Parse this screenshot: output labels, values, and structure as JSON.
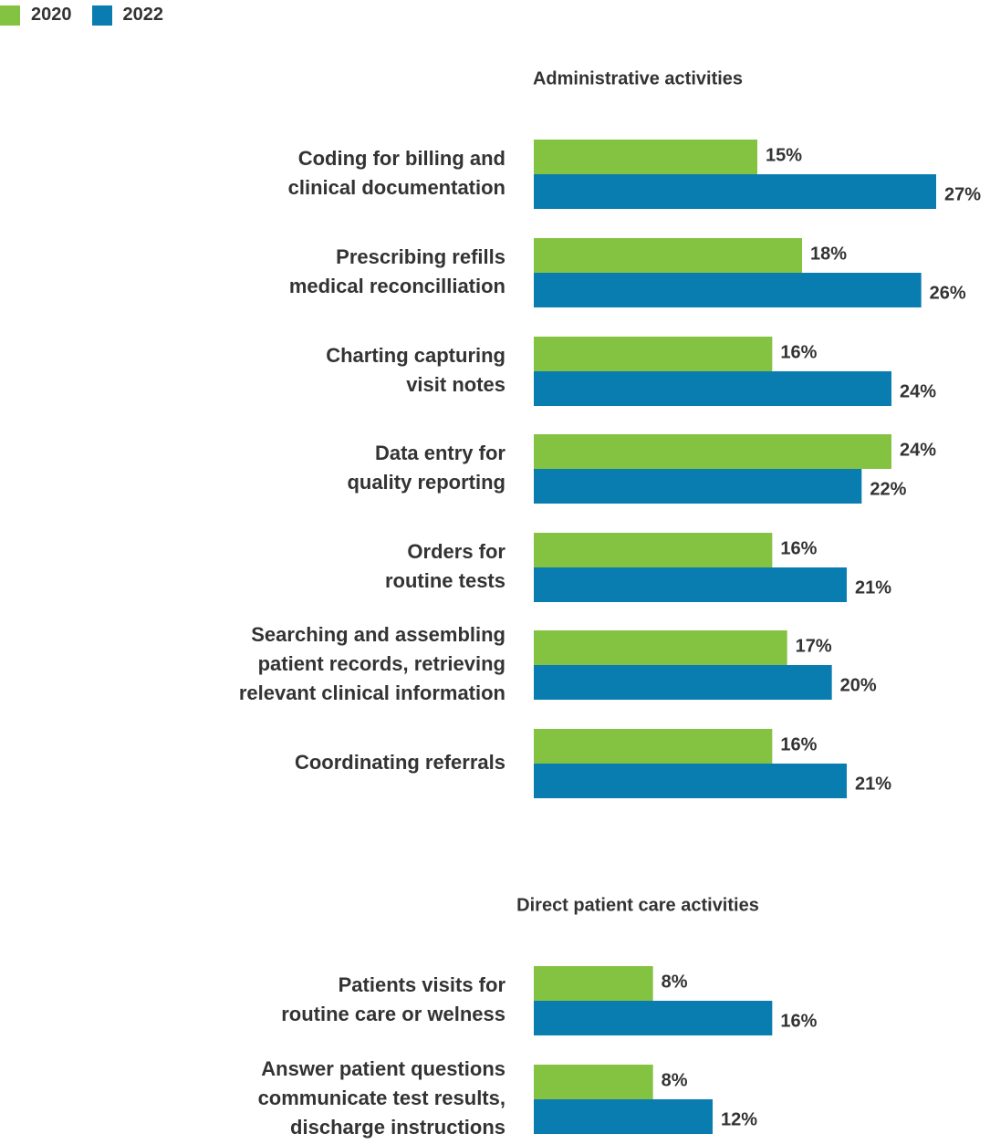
{
  "colors": {
    "s2020": "#84c341",
    "s2022": "#0a7db0",
    "text": "#333333"
  },
  "chart_data": {
    "type": "bar",
    "orientation": "horizontal",
    "xlim": [
      0,
      27
    ],
    "legend": {
      "position": "top-left",
      "entries": [
        "2020",
        "2022"
      ]
    },
    "series_names": [
      "2020",
      "2022"
    ],
    "unit": "%",
    "grid": false,
    "groups": [
      {
        "title": "Administrative activities",
        "categories": [
          [
            "Coding for billing and",
            "clinical documentation"
          ],
          [
            "Prescribing refills",
            "medical reconcilliation"
          ],
          [
            "Charting capturing",
            "visit notes"
          ],
          [
            "Data entry for",
            "quality reporting"
          ],
          [
            "Orders for",
            "routine tests"
          ],
          [
            "Searching and assembling",
            "patient records, retrieving",
            "relevant clinical information"
          ],
          [
            "Coordinating referrals"
          ]
        ],
        "series": [
          {
            "name": "2020",
            "values": [
              15,
              18,
              16,
              24,
              16,
              17,
              16
            ]
          },
          {
            "name": "2022",
            "values": [
              27,
              26,
              24,
              22,
              21,
              20,
              21
            ]
          }
        ]
      },
      {
        "title": "Direct patient care activities",
        "categories": [
          [
            "Patients visits for",
            "routine care or welness"
          ],
          [
            "Answer patient questions",
            "communicate test results,",
            "discharge instructions"
          ]
        ],
        "series": [
          {
            "name": "2020",
            "values": [
              8,
              8
            ]
          },
          {
            "name": "2022",
            "values": [
              16,
              12
            ]
          }
        ]
      }
    ]
  }
}
